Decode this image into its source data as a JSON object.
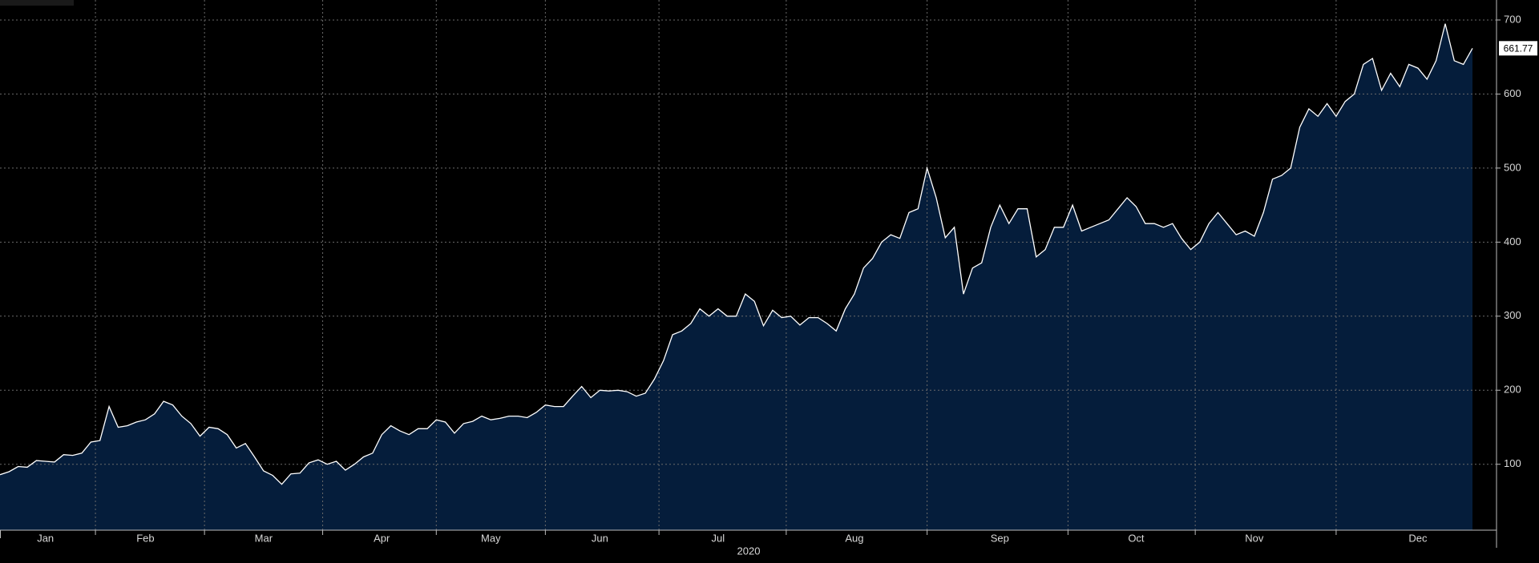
{
  "chart_data": {
    "type": "area",
    "xlabel": "2020",
    "categories": [
      null,
      null,
      null,
      null,
      null,
      "Jan",
      null,
      null,
      null,
      null,
      null,
      null,
      null,
      null,
      null,
      null,
      "Feb",
      null,
      null,
      null,
      null,
      null,
      null,
      null,
      null,
      null,
      null,
      null,
      null,
      "Mar",
      null,
      null,
      null,
      null,
      null,
      null,
      null,
      null,
      null,
      null,
      null,
      null,
      "Apr",
      null,
      null,
      null,
      null,
      null,
      null,
      null,
      null,
      null,
      null,
      null,
      "May",
      null,
      null,
      null,
      null,
      null,
      null,
      null,
      null,
      null,
      null,
      null,
      "Jun",
      null,
      null,
      null,
      null,
      null,
      null,
      null,
      null,
      null,
      null,
      null,
      null,
      "Jul",
      null,
      null,
      null,
      null,
      null,
      null,
      null,
      null,
      null,
      null,
      null,
      null,
      null,
      null,
      "Aug",
      null,
      null,
      null,
      null,
      null,
      null,
      null,
      null,
      null,
      null,
      null,
      null,
      null,
      null,
      null,
      "Sep",
      null,
      null,
      null,
      null,
      null,
      null,
      null,
      null,
      null,
      null,
      null,
      null,
      null,
      null,
      "Oct",
      null,
      null,
      null,
      null,
      null,
      null,
      null,
      null,
      null,
      null,
      null,
      null,
      "Nov",
      null,
      null,
      null,
      null,
      null,
      null,
      null,
      null,
      null,
      null,
      null,
      null,
      null,
      null,
      null,
      null,
      null,
      "Dec",
      null,
      null,
      null,
      null,
      null,
      null
    ],
    "values": [
      86,
      90,
      97,
      96,
      105,
      104,
      103,
      113,
      112,
      115,
      130,
      132,
      178,
      150,
      152,
      157,
      160,
      168,
      185,
      180,
      165,
      155,
      138,
      150,
      148,
      140,
      122,
      128,
      110,
      91,
      85,
      73,
      87,
      88,
      102,
      106,
      100,
      104,
      92,
      100,
      110,
      115,
      140,
      152,
      145,
      140,
      148,
      148,
      160,
      157,
      142,
      155,
      158,
      165,
      160,
      162,
      165,
      165,
      163,
      170,
      180,
      178,
      178,
      192,
      205,
      190,
      200,
      199,
      200,
      198,
      192,
      196,
      215,
      240,
      275,
      280,
      290,
      310,
      300,
      310,
      300,
      300,
      330,
      320,
      287,
      308,
      298,
      300,
      288,
      298,
      298,
      290,
      280,
      310,
      330,
      365,
      378,
      400,
      410,
      405,
      440,
      445,
      500,
      460,
      406,
      420,
      330,
      365,
      372,
      420,
      450,
      425,
      445,
      445,
      380,
      390,
      420,
      420,
      450,
      415,
      420,
      425,
      430,
      445,
      460,
      448,
      425,
      425,
      420,
      425,
      405,
      390,
      400,
      425,
      440,
      425,
      410,
      415,
      408,
      440,
      485,
      490,
      500,
      555,
      580,
      570,
      587,
      570,
      590,
      600,
      640,
      648,
      605,
      628,
      610,
      640,
      635,
      620,
      645,
      695,
      645,
      640,
      661.77
    ],
    "color": "#ffffff",
    "fill": "#051d3b",
    "ylim": [
      11,
      727
    ],
    "yticks": [
      100,
      200,
      300,
      400,
      500,
      600,
      700
    ],
    "grid": true
  }
}
